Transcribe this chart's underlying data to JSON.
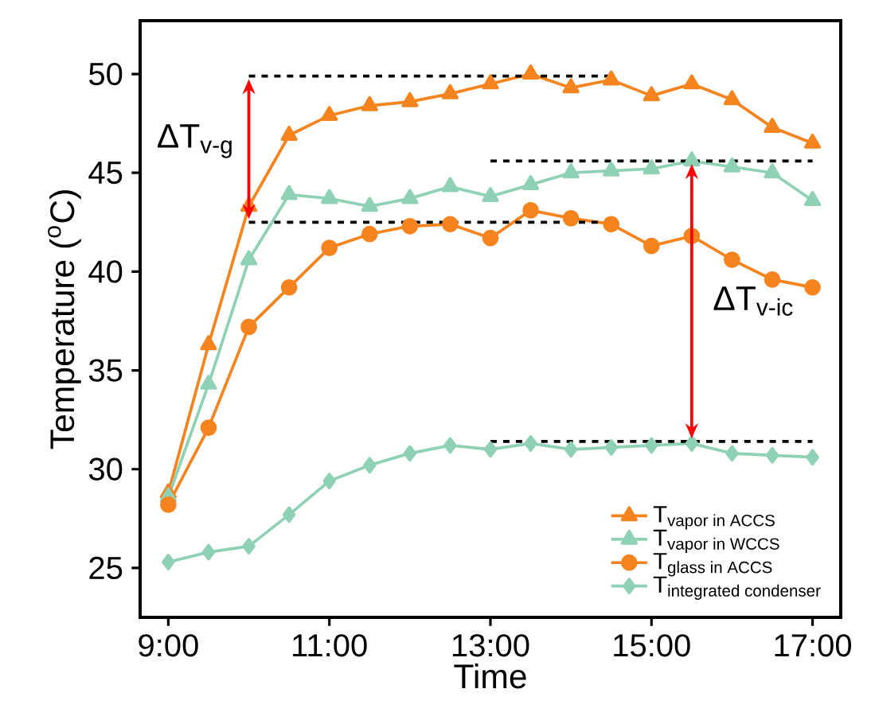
{
  "chart_data": {
    "type": "line",
    "xlabel": "Time",
    "ylabel": "Temperature ($^{o}$C)",
    "x": [
      9,
      9.5,
      10,
      10.5,
      11,
      11.5,
      12,
      12.5,
      13,
      13.5,
      14,
      14.5,
      15,
      15.5,
      16,
      16.5,
      17
    ],
    "xlim": [
      8.65,
      17.35
    ],
    "ylim": [
      22.5,
      52.7
    ],
    "xticks": [
      {
        "value": 9,
        "label": "9:00"
      },
      {
        "value": 11,
        "label": "11:00"
      },
      {
        "value": 13,
        "label": "13:00"
      },
      {
        "value": 15,
        "label": "15:00"
      },
      {
        "value": 17,
        "label": "17:00"
      }
    ],
    "yticks": [
      25,
      30,
      35,
      40,
      45,
      50
    ],
    "series": [
      {
        "name": "\\text{T}_{\\text{vapor in ACCS}}",
        "color": "#f5841f",
        "marker": "triangle",
        "values": [
          28.8,
          36.3,
          43.3,
          46.9,
          47.9,
          48.4,
          48.6,
          49.0,
          49.5,
          50.0,
          49.3,
          49.7,
          48.9,
          49.5,
          48.7,
          47.3,
          46.5
        ]
      },
      {
        "name": "\\text{T}_{\\text{vapor in WCCS}}",
        "color": "#8fd1b5",
        "marker": "triangle",
        "values": [
          28.6,
          34.3,
          40.6,
          43.9,
          43.7,
          43.3,
          43.7,
          44.3,
          43.8,
          44.4,
          45.0,
          45.1,
          45.2,
          45.6,
          45.3,
          45.0,
          43.6
        ]
      },
      {
        "name": "\\text{T}_{\\text{glass in ACCS}}",
        "color": "#f5841f",
        "marker": "circle",
        "values": [
          28.2,
          32.1,
          37.2,
          39.2,
          41.2,
          41.9,
          42.3,
          42.4,
          41.7,
          43.1,
          42.7,
          42.4,
          41.3,
          41.8,
          40.6,
          39.6,
          39.2
        ]
      },
      {
        "name": "\\text{T}_{\\text{integrated condenser}}",
        "color": "#8fd1b5",
        "marker": "diamond",
        "values": [
          25.3,
          25.8,
          26.1,
          27.7,
          29.4,
          30.2,
          30.8,
          31.2,
          31.0,
          31.3,
          31.0,
          31.1,
          31.2,
          31.3,
          30.8,
          30.7,
          30.6
        ]
      },
      {
        "color": "#000000",
        "marker": "none",
        "line_style": "dashed",
        "x": [
          10,
          14.5
        ],
        "values": [
          49.9,
          49.9
        ]
      },
      {
        "color": "#000000",
        "marker": "none",
        "line_style": "dashed",
        "x": [
          10,
          14.5
        ],
        "values": [
          42.5,
          42.5
        ]
      },
      {
        "color": "#000000",
        "marker": "none",
        "line_style": "dashed",
        "x": [
          13,
          17
        ],
        "values": [
          45.6,
          45.6
        ]
      },
      {
        "color": "#000000",
        "marker": "none",
        "line_style": "dashed",
        "x": [
          13,
          17
        ],
        "values": [
          31.4,
          31.4
        ]
      }
    ],
    "annotations": [
      "\\text{ΔT}_{\\text{v-g}}",
      "\\text{ΔT}_{\\text{v-ic}}"
    ],
    "legend": "bottom right",
    "grid": false
  }
}
